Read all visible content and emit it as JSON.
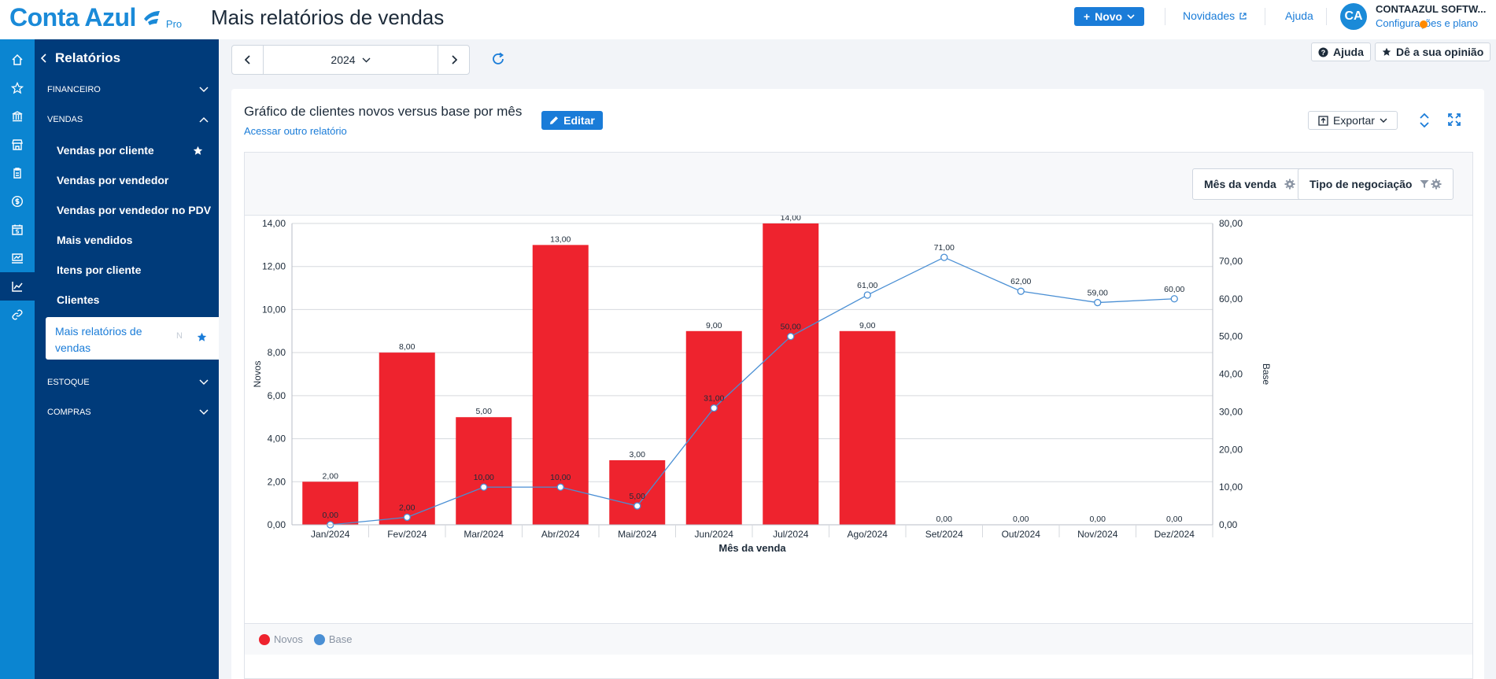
{
  "header": {
    "logo_text": "Conta Azul",
    "logo_badge": "Pro",
    "page_title": "Mais relatórios de vendas",
    "new_button": "Novo",
    "news_link": "Novidades",
    "help_link": "Ajuda",
    "avatar_initials": "CA",
    "company_name": "CONTAAZUL SOFTW...",
    "settings_link": "Configurações e plano"
  },
  "sidebar": {
    "back_label": "Relatórios",
    "sections": {
      "financeiro": "FINANCEIRO",
      "vendas": "VENDAS",
      "estoque": "ESTOQUE",
      "compras": "COMPRAS"
    },
    "items": [
      "Vendas por cliente",
      "Vendas por vendedor",
      "Vendas por vendedor no PDV",
      "Mais vendidos",
      "Itens por cliente",
      "Clientes"
    ],
    "active_item": "Mais relatórios de vendas",
    "active_badge": "N"
  },
  "toolbar": {
    "year": "2024",
    "help_button": "Ajuda",
    "feedback_button": "Dê a sua opinião"
  },
  "report": {
    "title": "Gráfico de clientes novos versus base por mês",
    "other_report_link": "Acessar outro relatório",
    "edit_button": "Editar",
    "export_button": "Exportar",
    "filters": [
      "Mês da venda",
      "Tipo de negociação"
    ]
  },
  "colors": {
    "bar": "#ee232e",
    "line": "#4a8fd4",
    "accent": "#1a7cd8"
  },
  "chart_data": {
    "type": "bar",
    "categories": [
      "Jan/2024",
      "Fev/2024",
      "Mar/2024",
      "Abr/2024",
      "Mai/2024",
      "Jun/2024",
      "Jul/2024",
      "Ago/2024",
      "Set/2024",
      "Out/2024",
      "Nov/2024",
      "Dez/2024"
    ],
    "series": [
      {
        "name": "Novos",
        "type": "bar",
        "axis": "left",
        "values": [
          2,
          8,
          5,
          13,
          3,
          9,
          14,
          9,
          0,
          0,
          0,
          0
        ],
        "labels": [
          "2,00",
          "8,00",
          "5,00",
          "13,00",
          "3,00",
          "9,00",
          "14,00",
          "9,00",
          "0,00",
          "0,00",
          "0,00",
          "0,00"
        ]
      },
      {
        "name": "Base",
        "type": "line",
        "axis": "right",
        "values": [
          0,
          2,
          10,
          10,
          5,
          31,
          50,
          61,
          71,
          62,
          59,
          60
        ],
        "labels": [
          "0,00",
          "2,00",
          "10,00",
          "10,00",
          "5,00",
          "31,00",
          "50,00",
          "61,00",
          "71,00",
          "62,00",
          "59,00",
          "60,00"
        ]
      }
    ],
    "xlabel": "Mês da venda",
    "ylabel": "Novos",
    "ylabel_right": "Base",
    "ylim": [
      0,
      14
    ],
    "ylim_right": [
      0,
      80
    ],
    "yticks": [
      "0,00",
      "2,00",
      "4,00",
      "6,00",
      "8,00",
      "10,00",
      "12,00",
      "14,00"
    ],
    "yticks_right": [
      "0,00",
      "10,00",
      "20,00",
      "30,00",
      "40,00",
      "50,00",
      "60,00",
      "70,00",
      "80,00"
    ],
    "legend": [
      "Novos",
      "Base"
    ],
    "legend_position": "bottom-left",
    "grid": true
  }
}
